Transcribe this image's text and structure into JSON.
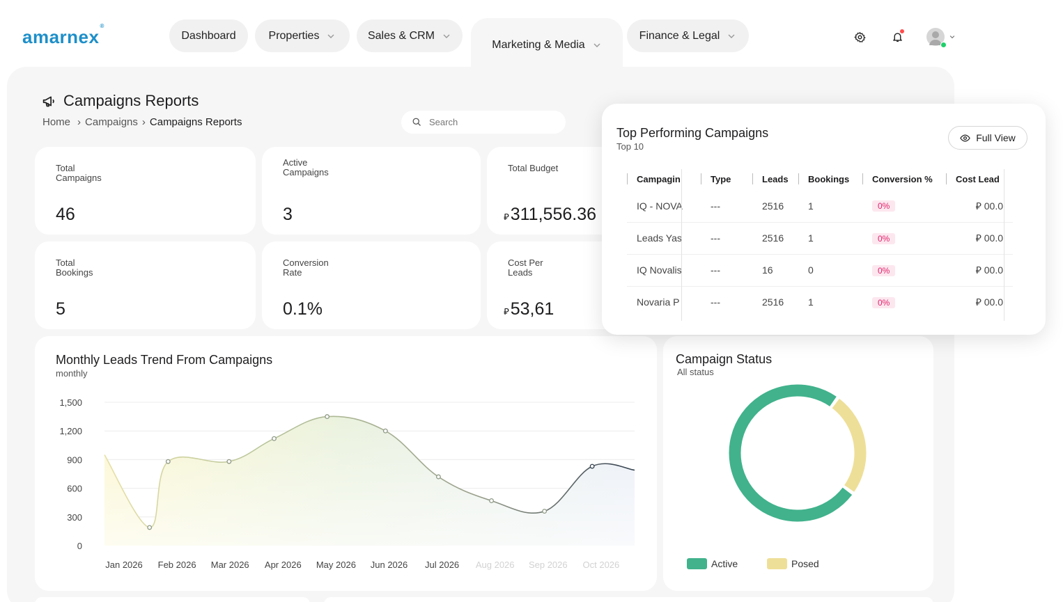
{
  "brand": {
    "logo_text": "amarnex",
    "logo_mark": "®",
    "color": "#1d8fc9"
  },
  "nav": {
    "items": [
      {
        "label": "Dashboard",
        "has_dropdown": false
      },
      {
        "label": "Properties",
        "has_dropdown": true
      },
      {
        "label": "Sales & CRM",
        "has_dropdown": true
      },
      {
        "label": "Marketing & Media",
        "has_dropdown": true,
        "active": true
      },
      {
        "label": "Finance & Legal",
        "has_dropdown": true
      }
    ],
    "icons": [
      "gear-icon",
      "bell-icon",
      "avatar"
    ]
  },
  "page": {
    "title": "Campaigns Reports",
    "title_icon": "megaphone-icon",
    "breadcrumb": [
      "Home",
      "Campaigns",
      "Campaigns Reports"
    ],
    "search": {
      "placeholder": "Search"
    }
  },
  "currency_symbol": "⃁",
  "kpis": [
    {
      "label": "Total Campaigns",
      "value": "46"
    },
    {
      "label": "Active Campaigns",
      "value": "3"
    },
    {
      "label": "Total Budget",
      "value": "311,556.36",
      "currency": true
    },
    {
      "label": "Total Bookings",
      "value": "5"
    },
    {
      "label": "Conversion Rate",
      "value": "0.1%"
    },
    {
      "label": "Cost Per Leads",
      "value": "53,61",
      "currency": true
    }
  ],
  "leads_chart": {
    "title": "Monthly Leads Trend From Campaigns",
    "subtitle": "monthly"
  },
  "chart_data": [
    {
      "type": "area",
      "title": "Monthly Leads Trend From Campaigns",
      "subtitle": "monthly",
      "categories": [
        "Jan 2026",
        "Feb 2026",
        "Mar 2026",
        "Apr 2026",
        "May 2026",
        "Jun 2026",
        "Jul 2026",
        "Aug 2026",
        "Sep 2026",
        "Oct 2026"
      ],
      "x_faded_from_index": 7,
      "y_ticks": [
        0,
        300,
        600,
        900,
        1200,
        1500
      ],
      "y_tick_labels": [
        "0",
        "300",
        "600",
        "900",
        "1,200",
        "1,500"
      ],
      "ylim": [
        0,
        1500
      ],
      "grid": true,
      "points": [
        {
          "month": 0.0,
          "value": 950
        },
        {
          "month": 0.85,
          "value": 190
        },
        {
          "month": 1.2,
          "value": 880
        },
        {
          "month": 2.35,
          "value": 880
        },
        {
          "month": 3.2,
          "value": 1120
        },
        {
          "month": 4.2,
          "value": 1350
        },
        {
          "month": 5.3,
          "value": 1200
        },
        {
          "month": 6.3,
          "value": 720
        },
        {
          "month": 7.3,
          "value": 470
        },
        {
          "month": 8.3,
          "value": 360
        },
        {
          "month": 9.2,
          "value": 830
        },
        {
          "month": 10.0,
          "value": 790
        }
      ]
    },
    {
      "type": "pie",
      "title": "Campaign Status",
      "subtitle": "All status",
      "categories": [
        "Active",
        "Posed"
      ],
      "values": [
        75,
        25
      ],
      "colors": [
        "#41b28c",
        "#eedf98"
      ],
      "legend_position": "bottom"
    }
  ],
  "status_chart": {
    "title": "Campaign Status",
    "subtitle": "All status"
  },
  "legend": [
    {
      "label": "Active",
      "color": "#41b28c"
    },
    {
      "label": "Posed",
      "color": "#eedf98"
    }
  ],
  "top_campaigns": {
    "title": "Top Performing Campaigns",
    "subtitle": "Top 10",
    "full_view_label": "Full View",
    "columns": [
      "Campagin",
      "Type",
      "Leads",
      "Bookings",
      "Conversion %",
      "Cost Lead"
    ],
    "rows": [
      {
        "name": "IQ - NOVA",
        "type": "---",
        "leads": "2516",
        "bookings": "1",
        "conversion": "0%",
        "cost": "00.0"
      },
      {
        "name": "Leads Yas",
        "type": "---",
        "leads": "2516",
        "bookings": "1",
        "conversion": "0%",
        "cost": "00.0"
      },
      {
        "name": "IQ Novalis",
        "type": "---",
        "leads": "16",
        "bookings": "0",
        "conversion": "0%",
        "cost": "00.0"
      },
      {
        "name": "Novaria P",
        "type": "---",
        "leads": "2516",
        "bookings": "1",
        "conversion": "0%",
        "cost": "00.0"
      }
    ]
  }
}
